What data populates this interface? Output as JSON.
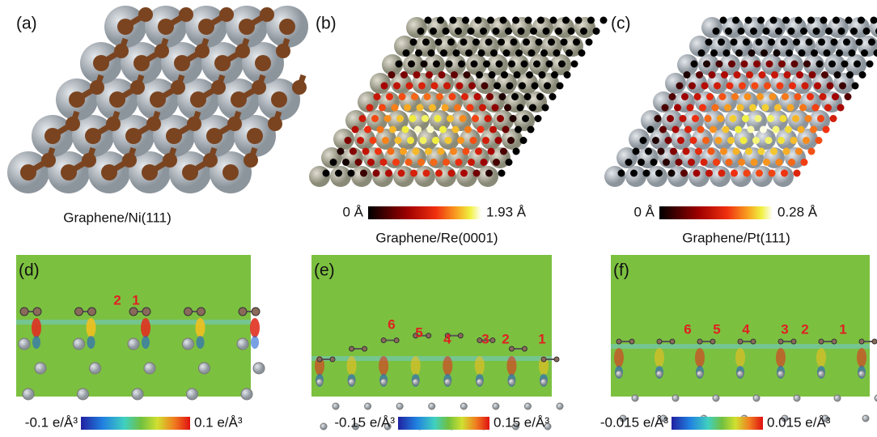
{
  "top_panels": [
    {
      "label": "(a)",
      "caption": "Graphene/Ni(111)"
    },
    {
      "label": "(b)",
      "caption": "Graphene/Re(0001)",
      "colorbar": {
        "min": "0 Å",
        "max": "1.93 Å"
      }
    },
    {
      "label": "(c)",
      "caption": "Graphene/Pt(111)",
      "colorbar": {
        "min": "0 Å",
        "max": "0.28 Å"
      }
    }
  ],
  "bottom_panels": [
    {
      "label": "(d)",
      "sites": [
        "2",
        "1"
      ],
      "colorbar": {
        "min": "-0.1 e/Å³",
        "max": "0.1 e/Å³"
      }
    },
    {
      "label": "(e)",
      "sites": [
        "6",
        "5",
        "4",
        "3",
        "2",
        "1"
      ],
      "colorbar": {
        "min": "-0.15 e/Å³",
        "max": "0.15 e/Å³"
      }
    },
    {
      "label": "(f)",
      "sites": [
        "6",
        "5",
        "4",
        "3",
        "2",
        "1"
      ],
      "colorbar": {
        "min": "-0.015 e/Å³",
        "max": "0.015 e/Å³"
      }
    }
  ]
}
